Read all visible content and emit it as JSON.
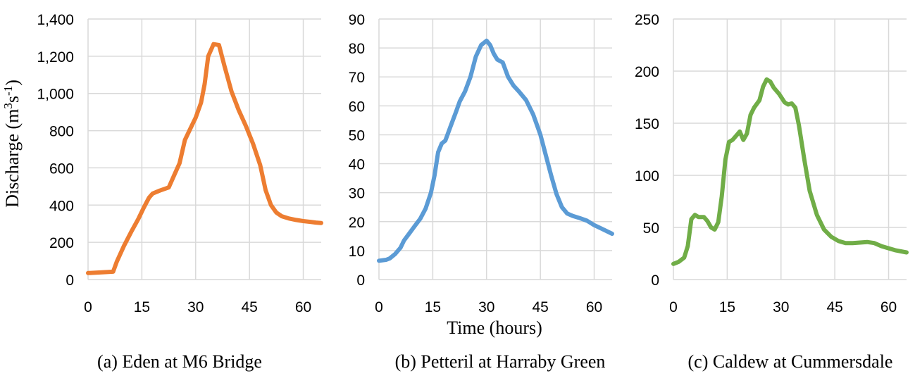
{
  "figure": {
    "y_axis_title": "Discharge (m",
    "y_axis_title_sup1": "3",
    "y_axis_title_mid": "s",
    "y_axis_title_sup2": "-1",
    "y_axis_title_end": ")",
    "x_axis_title": "Time (hours)"
  },
  "chart_data": [
    {
      "type": "line",
      "caption": "(a) Eden at M6 Bridge",
      "xlim": [
        0,
        65
      ],
      "ylim": [
        0,
        1400
      ],
      "x_ticks": [
        0,
        15,
        30,
        45,
        60
      ],
      "y_ticks": [
        0,
        200,
        400,
        600,
        800,
        1000,
        1200,
        1400
      ],
      "y_tick_labels": [
        "0",
        "200",
        "400",
        "600",
        "800",
        "1,000",
        "1,200",
        "1,400"
      ],
      "grid": true,
      "color": "#ed7d31",
      "series": [
        {
          "x": [
            0,
            3,
            7,
            8,
            10,
            12,
            14,
            15.5,
            17,
            18,
            20,
            22.5,
            24,
            25.5,
            27,
            28.5,
            30,
            31.5,
            32.5,
            33.5,
            35,
            36.5,
            38,
            40,
            42,
            44,
            46,
            48,
            49.5,
            51,
            52.5,
            54,
            56,
            58,
            60,
            62,
            63.5,
            65
          ],
          "y": [
            35,
            38,
            42,
            95,
            180,
            255,
            325,
            385,
            440,
            462,
            478,
            495,
            560,
            625,
            750,
            810,
            870,
            950,
            1050,
            1200,
            1265,
            1260,
            1150,
            1010,
            910,
            825,
            730,
            615,
            480,
            400,
            360,
            340,
            328,
            320,
            314,
            310,
            306,
            304
          ]
        }
      ]
    },
    {
      "type": "line",
      "caption": "(b) Petteril at Harraby Green",
      "xlim": [
        0,
        65
      ],
      "ylim": [
        0,
        90
      ],
      "x_ticks": [
        0,
        15,
        30,
        45,
        60
      ],
      "y_ticks": [
        0,
        10,
        20,
        30,
        40,
        50,
        60,
        70,
        80,
        90
      ],
      "y_tick_labels": [
        "0",
        "10",
        "20",
        "30",
        "40",
        "50",
        "60",
        "70",
        "80",
        "90"
      ],
      "grid": true,
      "color": "#5b9bd5",
      "series": [
        {
          "x": [
            0,
            2,
            3,
            4.5,
            6,
            7,
            8.5,
            10,
            11.5,
            13,
            14.5,
            15.5,
            16.5,
            17.5,
            18.5,
            20,
            21.5,
            22.5,
            24,
            25.5,
            27,
            28.5,
            30,
            31,
            32,
            33,
            34.5,
            36,
            37.5,
            39,
            41,
            43,
            45,
            46.5,
            48,
            49.5,
            51,
            52.5,
            54,
            56,
            58,
            60,
            62,
            65
          ],
          "y": [
            6.5,
            6.8,
            7.3,
            8.8,
            11,
            13.5,
            16,
            18.5,
            21,
            24.5,
            30,
            36,
            44,
            47,
            48,
            53,
            58,
            61.5,
            65,
            70,
            77,
            81,
            82.5,
            81,
            78,
            76,
            75,
            70,
            67,
            65,
            62,
            57,
            50,
            43,
            36,
            29.5,
            25,
            22.8,
            22,
            21.2,
            20.3,
            18.8,
            17.6,
            15.8
          ]
        }
      ]
    },
    {
      "type": "line",
      "caption": "(c) Caldew at Cummersdale",
      "xlim": [
        0,
        65
      ],
      "ylim": [
        0,
        250
      ],
      "x_ticks": [
        0,
        15,
        30,
        45,
        60
      ],
      "y_ticks": [
        0,
        50,
        100,
        150,
        200,
        250
      ],
      "y_tick_labels": [
        "0",
        "50",
        "100",
        "150",
        "200",
        "250"
      ],
      "grid": true,
      "color": "#70ad47",
      "series": [
        {
          "x": [
            0,
            1.5,
            3,
            4,
            5,
            6,
            7,
            8.5,
            9.5,
            10.5,
            11.5,
            12.5,
            13.5,
            14.5,
            15.5,
            16.5,
            17.5,
            18.5,
            19.5,
            20.5,
            21.5,
            22.5,
            24,
            25,
            26,
            27,
            28,
            29.5,
            31,
            32,
            33,
            34,
            35,
            36.5,
            38,
            40,
            42,
            44,
            46,
            48,
            50,
            52,
            54,
            56,
            58,
            60,
            62,
            65
          ],
          "y": [
            15,
            17,
            21,
            32,
            58,
            62,
            60,
            60,
            56,
            50,
            48,
            55,
            80,
            115,
            132,
            134,
            138,
            142,
            134,
            140,
            158,
            165,
            172,
            185,
            192,
            190,
            184,
            178,
            170,
            168,
            169,
            165,
            148,
            115,
            85,
            62,
            48,
            41,
            37,
            35,
            35,
            35.5,
            36,
            35,
            32,
            30,
            28,
            26
          ]
        }
      ]
    }
  ]
}
